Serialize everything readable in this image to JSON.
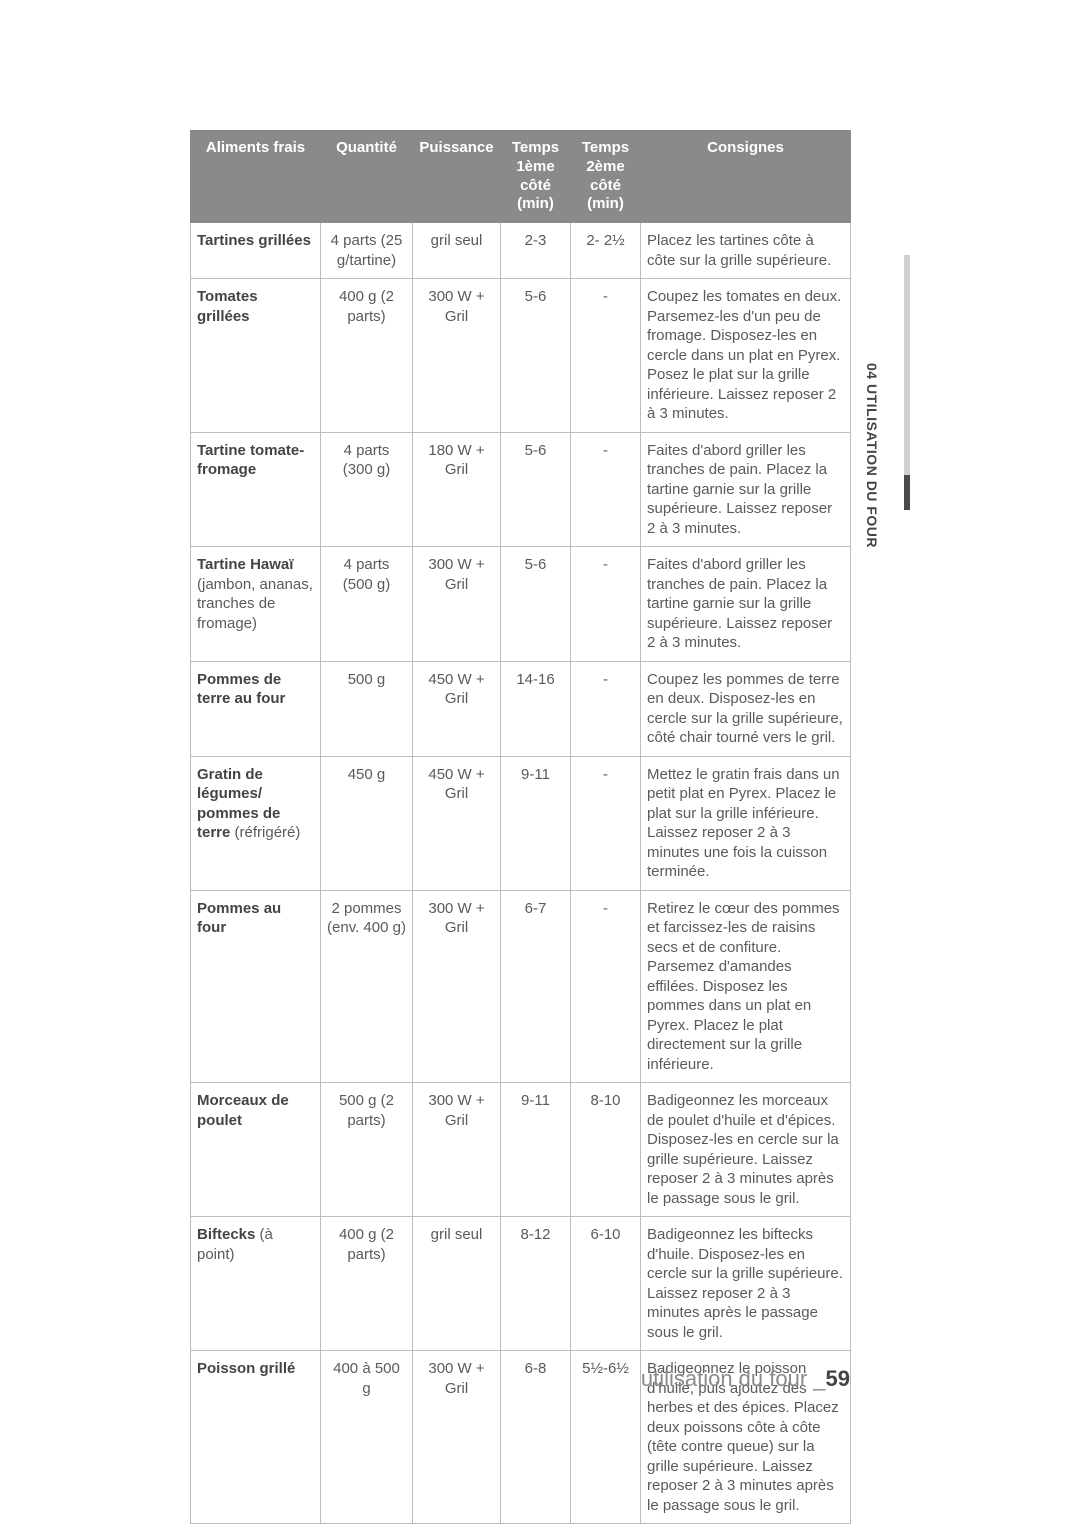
{
  "side_label": "04 UTILISATION DU FOUR",
  "footer_text": "utilisation du four _",
  "footer_page": "59",
  "columns": {
    "food": "Aliments frais",
    "qty": "Quantité",
    "pwr": "Puissance",
    "t1a": "Temps",
    "t1b": "1ème côté (min)",
    "t2a": "Temps",
    "t2b": "2ème côté (min)",
    "inst": "Consignes"
  },
  "col_widths": {
    "food": 130,
    "qty": 92,
    "pwr": 88,
    "t1": 70,
    "t2": 70,
    "inst": 210
  },
  "rows": [
    {
      "food_bold": "Tartines grillées",
      "food_plain": "",
      "qty": "4 parts (25 g/tartine)",
      "pwr": "gril seul",
      "t1": "2-3",
      "t2": "2- 2½",
      "inst": "Placez les tartines côte à côte sur la grille supérieure."
    },
    {
      "food_bold": "Tomates grillées",
      "food_plain": "",
      "qty": "400 g (2 parts)",
      "pwr": "300 W + Gril",
      "t1": "5-6",
      "t2": "-",
      "inst": "Coupez les tomates en deux. Parsemez-les d'un peu de fromage. Disposez-les en cercle dans un plat en Pyrex. Posez le plat sur la grille inférieure. Laissez reposer 2 à 3 minutes."
    },
    {
      "food_bold": "Tartine tomate-fromage",
      "food_plain": "",
      "qty": "4 parts (300 g)",
      "pwr": "180 W + Gril",
      "t1": "5-6",
      "t2": "-",
      "inst": "Faites d'abord griller les tranches de pain. Placez la tartine garnie sur la grille supérieure. Laissez reposer 2 à 3 minutes."
    },
    {
      "food_bold": "Tartine Hawaï",
      "food_plain": "(jambon, ananas, tranches de fromage)",
      "qty": "4 parts (500 g)",
      "pwr": "300 W + Gril",
      "t1": "5-6",
      "t2": "-",
      "inst": "Faites d'abord griller les tranches de pain. Placez la tartine garnie sur la grille supérieure. Laissez reposer 2 à 3 minutes."
    },
    {
      "food_bold": "Pommes de terre au four",
      "food_plain": "",
      "qty": "500 g",
      "pwr": "450 W + Gril",
      "t1": "14-16",
      "t2": "-",
      "inst": "Coupez les pommes de terre en deux. Disposez-les en cercle sur la grille supérieure, côté chair tourné vers le gril."
    },
    {
      "food_bold": "Gratin de légumes/ pommes de terre",
      "food_plain": "(réfrigéré)",
      "qty": "450 g",
      "pwr": "450 W + Gril",
      "t1": "9-11",
      "t2": "-",
      "inst": "Mettez le gratin frais dans un petit plat en Pyrex. Placez le plat sur la grille inférieure. Laissez reposer 2 à 3 minutes une fois la cuisson terminée."
    },
    {
      "food_bold": "Pommes au four",
      "food_plain": "",
      "qty": "2 pommes (env. 400 g)",
      "pwr": "300 W + Gril",
      "t1": "6-7",
      "t2": "-",
      "inst": "Retirez le cœur des pommes et farcissez-les de raisins secs et de confiture. Parsemez d'amandes effilées. Disposez les pommes dans un plat en Pyrex. Placez le plat directement sur la grille inférieure."
    },
    {
      "food_bold": "Morceaux de poulet",
      "food_plain": "",
      "qty": "500 g (2 parts)",
      "pwr": "300 W + Gril",
      "t1": "9-11",
      "t2": "8-10",
      "inst": "Badigeonnez les morceaux de poulet d'huile et d'épices. Disposez-les en cercle sur la grille supérieure. Laissez reposer 2 à 3 minutes après le passage sous le gril."
    },
    {
      "food_bold": "Biftecks",
      "food_plain": "(à point)",
      "qty": "400 g (2 parts)",
      "pwr": "gril seul",
      "t1": "8-12",
      "t2": "6-10",
      "inst": "Badigeonnez les biftecks d'huile. Disposez-les en cercle sur la grille supérieure. Laissez reposer 2 à 3 minutes après le passage sous le gril."
    },
    {
      "food_bold": "Poisson grillé",
      "food_plain": "",
      "qty": "400 à 500 g",
      "pwr": "300 W + Gril",
      "t1": "6-8",
      "t2": "5½-6½",
      "inst": "Badigeonnez le poisson d'huile, puis ajoutez des herbes et des épices. Placez deux poissons côte à côte (tête contre queue) sur la grille supérieure. Laissez reposer 2 à 3 minutes après le passage sous le gril."
    }
  ]
}
